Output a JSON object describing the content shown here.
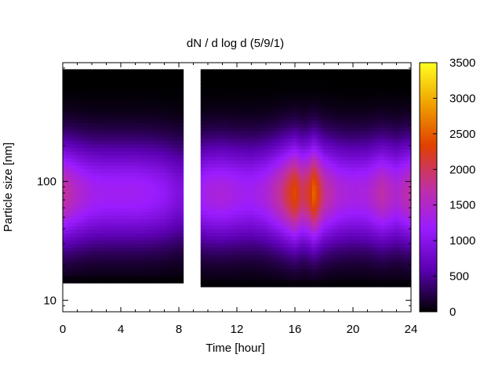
{
  "chart_data": {
    "type": "heatmap",
    "title": "dN / d log d (5/9/1)",
    "xlabel": "Time [hour]",
    "ylabel": "Particle size [nm]",
    "xlim": [
      0,
      24
    ],
    "ylim": [
      8,
      1000
    ],
    "y_scale": "log",
    "x_ticks": [
      "0",
      "4",
      "8",
      "12",
      "16",
      "20",
      "24"
    ],
    "y_ticks": [
      "10",
      "100"
    ],
    "colorbar": {
      "range": [
        0,
        3500
      ],
      "ticks": [
        "0",
        "500",
        "1000",
        "1500",
        "2000",
        "2500",
        "3000",
        "3500"
      ],
      "colormap": [
        "#000000",
        "#5a00b0",
        "#9b1cff",
        "#c030a0",
        "#e04000",
        "#f0a000",
        "#ffff20"
      ]
    },
    "coverage": [
      {
        "hours": [
          0,
          8.3
        ],
        "size_range_nm": [
          14,
          880
        ]
      },
      {
        "hours": [
          9.5,
          24
        ],
        "size_range_nm": [
          13,
          880
        ]
      }
    ],
    "intensity_profile": {
      "hours": [
        0,
        1,
        2,
        3,
        4,
        5,
        6,
        7,
        8,
        10,
        11,
        12,
        13,
        14,
        15,
        15.5,
        16,
        16.5,
        17,
        17.3,
        18,
        19,
        20,
        21,
        22,
        23,
        24
      ],
      "peak_values": [
        1800,
        1500,
        1300,
        1250,
        1250,
        1250,
        1200,
        1100,
        900,
        1350,
        1400,
        1300,
        1250,
        1400,
        1800,
        2100,
        2400,
        2000,
        2200,
        2600,
        1800,
        1450,
        1350,
        1400,
        1700,
        1450,
        1750
      ],
      "mode_diameter_nm": 80
    }
  }
}
